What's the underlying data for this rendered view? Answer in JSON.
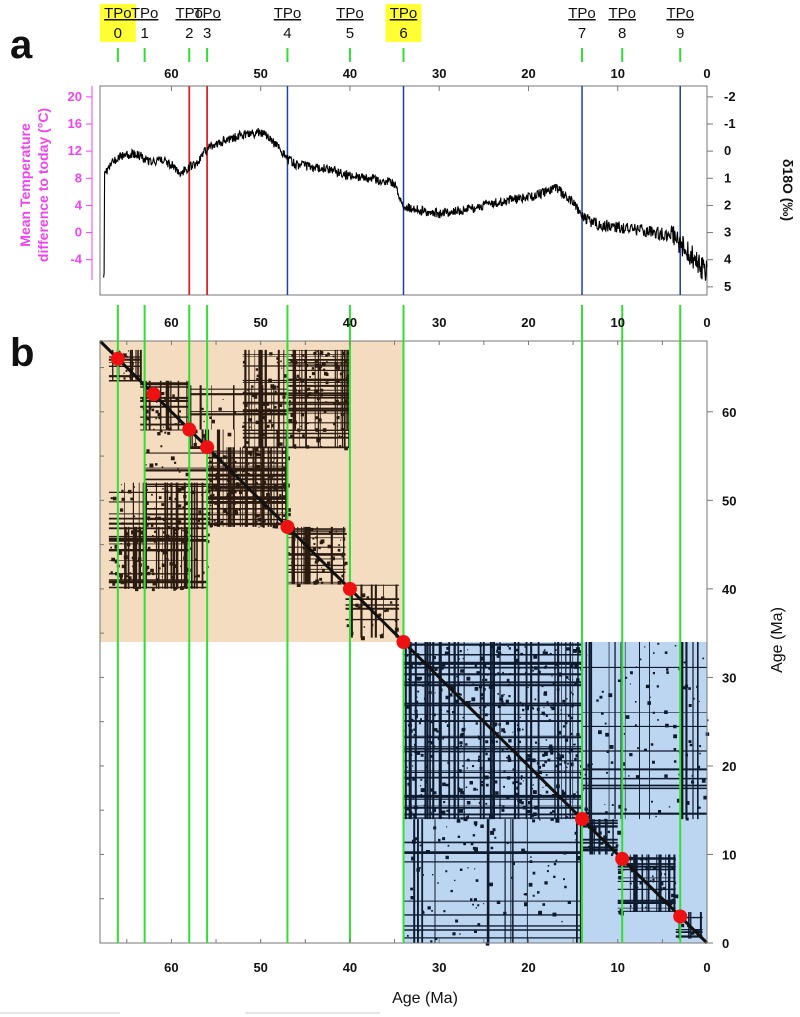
{
  "panel_labels": {
    "a": "a",
    "b": "b"
  },
  "tipping_points": [
    {
      "tag": "TPo",
      "num": "0",
      "age": 66,
      "highlight": true
    },
    {
      "tag": "TPo",
      "num": "1",
      "age": 63,
      "highlight": false
    },
    {
      "tag": "TPo",
      "num": "2",
      "age": 58,
      "highlight": false
    },
    {
      "tag": "TPo",
      "num": "3",
      "age": 56,
      "highlight": false
    },
    {
      "tag": "TPo",
      "num": "4",
      "age": 47,
      "highlight": false
    },
    {
      "tag": "TPo",
      "num": "5",
      "age": 40,
      "highlight": false
    },
    {
      "tag": "TPo",
      "num": "6",
      "age": 34,
      "highlight": true
    },
    {
      "tag": "TPo",
      "num": "7",
      "age": 14,
      "highlight": false
    },
    {
      "tag": "TPo",
      "num": "8",
      "age": 9.5,
      "highlight": false
    },
    {
      "tag": "TPo",
      "num": "9",
      "age": 3,
      "highlight": false
    }
  ],
  "colors": {
    "highlight": "#ffff33",
    "green_line": "#33dd33",
    "temperature_axis": "#ee44ee",
    "red_line": "#dd2222",
    "blue_line": "#1f3fa8",
    "cluster_early": "#f4dcc0",
    "cluster_late": "#bcd6f2",
    "marker": "#ee1111",
    "rp_dark_early": "#2a1a10",
    "rp_dark_late": "#0e1a2e"
  },
  "chart_data": [
    {
      "type": "line",
      "panel": "a",
      "left_axis_label_line1": "Mean Temperature",
      "left_axis_label_line2": "difference to today (°C)",
      "right_axis_label": "δ18O (‰)",
      "x_ticks": [
        "60",
        "50",
        "40",
        "30",
        "20",
        "10",
        "0"
      ],
      "x_tick_values": [
        60,
        50,
        40,
        30,
        20,
        10,
        0
      ],
      "left_ticks": [
        "20",
        "16",
        "12",
        "8",
        "4",
        "0",
        "-4"
      ],
      "left_tick_values": [
        20,
        16,
        12,
        8,
        4,
        0,
        -4
      ],
      "right_ticks": [
        "-2",
        "-1",
        "0",
        "1",
        "2",
        "3",
        "4",
        "5"
      ],
      "right_tick_values": [
        -2,
        -1,
        0,
        1,
        2,
        3,
        4,
        5
      ],
      "xlim": [
        68,
        0
      ],
      "ylim_d18O": [
        5.3,
        -2.4
      ],
      "red_lines": [
        58,
        56
      ],
      "blue_lines": [
        47,
        34,
        14,
        3
      ],
      "series": [
        {
          "x": [
            67.5,
            66,
            64,
            62,
            61,
            60,
            59,
            58,
            57,
            56,
            55,
            54,
            52,
            50,
            49,
            48,
            47,
            46,
            44,
            42,
            40,
            38,
            36,
            35,
            34,
            33,
            32,
            30,
            28,
            26,
            24,
            22,
            20,
            18,
            17,
            16,
            15,
            14,
            13,
            12,
            10,
            8,
            6,
            4,
            3,
            2,
            1,
            0
          ],
          "y": [
            0.8,
            0.2,
            0.1,
            0.4,
            0.3,
            0.5,
            0.8,
            0.6,
            0.4,
            -0.1,
            -0.2,
            -0.4,
            -0.6,
            -0.7,
            -0.5,
            -0.1,
            0.3,
            0.5,
            0.6,
            0.7,
            0.9,
            1.0,
            1.1,
            1.2,
            2.0,
            2.1,
            2.2,
            2.3,
            2.2,
            2.1,
            1.9,
            1.8,
            1.7,
            1.5,
            1.3,
            1.6,
            1.9,
            2.4,
            2.6,
            2.7,
            2.8,
            2.9,
            3.0,
            3.1,
            3.4,
            3.8,
            4.1,
            4.5
          ]
        }
      ]
    },
    {
      "type": "heatmap",
      "panel": "b",
      "xlabel": "Age  (Ma)",
      "ylabel": "Age  (Ma)",
      "x_ticks": [
        "60",
        "50",
        "40",
        "30",
        "20",
        "10",
        "0"
      ],
      "x_tick_values": [
        60,
        50,
        40,
        30,
        20,
        10,
        0
      ],
      "y_ticks": [
        "60",
        "50",
        "40",
        "30",
        "20",
        "10",
        "0"
      ],
      "y_tick_values": [
        60,
        50,
        40,
        30,
        20,
        10,
        0
      ],
      "xlim": [
        68,
        0
      ],
      "ylim": [
        0,
        68
      ],
      "clusters": [
        {
          "from": 68,
          "to": 34
        },
        {
          "from": 34,
          "to": 0
        }
      ],
      "blocks": [
        {
          "from": 67,
          "to": 63.5,
          "d": 0.85
        },
        {
          "from": 63.5,
          "to": 58,
          "d": 0.8
        },
        {
          "from": 58,
          "to": 56,
          "d": 0.6
        },
        {
          "from": 56,
          "to": 47,
          "d": 0.85
        },
        {
          "from": 47,
          "to": 40.5,
          "d": 0.8
        },
        {
          "from": 40.5,
          "to": 34.5,
          "d": 0.45
        },
        {
          "from": 34,
          "to": 14,
          "d": 0.8
        },
        {
          "from": 14,
          "to": 10,
          "d": 0.8
        },
        {
          "from": 10,
          "to": 3.5,
          "d": 0.85
        },
        {
          "from": 3.5,
          "to": 0.5,
          "d": 0.55
        }
      ],
      "offblocks": [
        {
          "x0": 67,
          "x1": 56,
          "y0": 52,
          "y1": 40,
          "d": 0.55
        },
        {
          "x0": 52,
          "x1": 40,
          "y0": 67,
          "y1": 56,
          "d": 0.55
        },
        {
          "x0": 67,
          "x1": 58,
          "y0": 47,
          "y1": 40,
          "d": 0.5
        },
        {
          "x0": 47,
          "x1": 40,
          "y0": 67,
          "y1": 58,
          "d": 0.5
        },
        {
          "x0": 63,
          "x1": 47,
          "y0": 58,
          "y1": 47,
          "d": 0.25
        },
        {
          "x0": 58,
          "x1": 47,
          "y0": 63,
          "y1": 58,
          "d": 0.25
        },
        {
          "x0": 34,
          "x1": 14,
          "y0": 14,
          "y1": 0,
          "d": 0.25
        },
        {
          "x0": 14,
          "x1": 0,
          "y0": 34,
          "y1": 14,
          "d": 0.25
        }
      ],
      "markers": [
        66,
        62,
        58,
        56,
        47,
        40,
        34,
        14,
        9.5,
        3
      ]
    }
  ]
}
